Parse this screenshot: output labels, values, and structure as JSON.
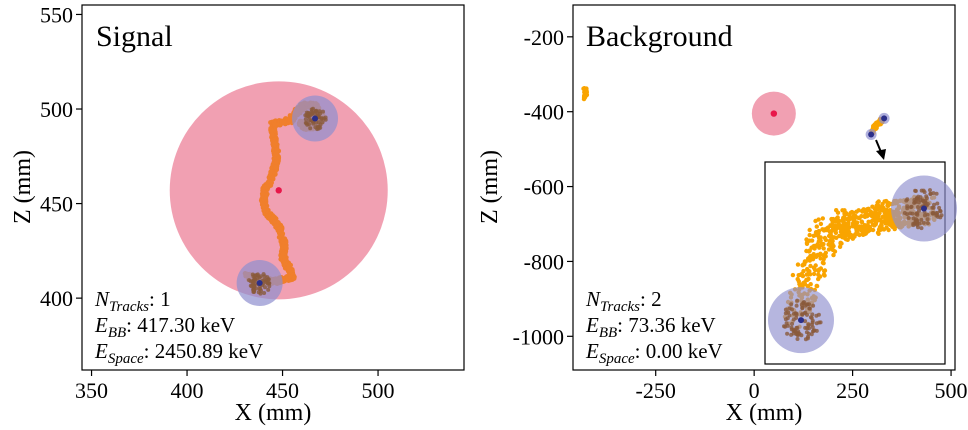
{
  "chart_data": [
    {
      "type": "scatter",
      "title": "Signal",
      "xlabel": "X (mm)",
      "ylabel": "Z (mm)",
      "xlim": [
        345,
        545
      ],
      "ylim": [
        362,
        555
      ],
      "x_ticks": [
        350,
        400,
        450,
        500
      ],
      "y_ticks": [
        400,
        450,
        500,
        550
      ],
      "x_tick_labels": [
        "350",
        "400",
        "450",
        "500"
      ],
      "y_tick_labels": [
        "400",
        "450",
        "500",
        "550"
      ],
      "grid": false,
      "colors": {
        "track": "#f07f2c",
        "sphere": "#ef8fa4",
        "center": "#e8174a",
        "blob": "#8f8fce",
        "blob_center": "#2c2f8a"
      },
      "track_path": [
        [
          431,
          412
        ],
        [
          436,
          410
        ],
        [
          441,
          409
        ],
        [
          447,
          409
        ],
        [
          451,
          410
        ],
        [
          455,
          411
        ],
        [
          454,
          415
        ],
        [
          452,
          418
        ],
        [
          450,
          422
        ],
        [
          451,
          427
        ],
        [
          450,
          432
        ],
        [
          448,
          438
        ],
        [
          445,
          442
        ],
        [
          441,
          446
        ],
        [
          440,
          452
        ],
        [
          441,
          458
        ],
        [
          444,
          463
        ],
        [
          446,
          469
        ],
        [
          447,
          475
        ],
        [
          446,
          482
        ],
        [
          445,
          487
        ],
        [
          445,
          492
        ],
        [
          449,
          493
        ],
        [
          454,
          494
        ],
        [
          457,
          498
        ],
        [
          461,
          502
        ],
        [
          466,
          502
        ],
        [
          470,
          498
        ],
        [
          470,
          493
        ],
        [
          466,
          491
        ],
        [
          462,
          490
        ],
        [
          459,
          494
        ]
      ],
      "large_sphere": {
        "x": 448,
        "y": 457,
        "r": 28
      },
      "blobs": [
        {
          "x": 467,
          "y": 495,
          "r": 6.3
        },
        {
          "x": 438,
          "y": 408,
          "r": 6.3
        }
      ],
      "stats": [
        {
          "symbol": "N",
          "subscript": "Tracks",
          "value": ": 1"
        },
        {
          "symbol": "E",
          "subscript": "BB",
          "value": ":     417.30 keV"
        },
        {
          "symbol": "E",
          "subscript": "Space",
          "value": ":  2450.89 keV"
        }
      ]
    },
    {
      "type": "scatter",
      "title": "Background",
      "xlabel": "X (mm)",
      "ylabel": "Z (mm)",
      "xlim": [
        -460,
        510
      ],
      "ylim": [
        -1090,
        -115
      ],
      "x_ticks": [
        -250,
        0,
        250,
        500
      ],
      "y_ticks": [
        -200,
        -400,
        -600,
        -800,
        -1000
      ],
      "x_tick_labels": [
        "-250",
        "0",
        "250",
        "500"
      ],
      "y_tick_labels": [
        "-200",
        "-400",
        "-600",
        "-800",
        "-1000"
      ],
      "grid": false,
      "colors": {
        "track": "#f9a400",
        "sphere": "#ef8fa4",
        "center": "#e8174a",
        "blob": "#8f8fce",
        "blob_center": "#2c2f8a"
      },
      "stray_track": [
        [
          -430,
          -335
        ],
        [
          -428,
          -350
        ],
        [
          -429,
          -365
        ]
      ],
      "track_path": [
        [
          300,
          -455
        ],
        [
          305,
          -445
        ],
        [
          312,
          -434
        ],
        [
          320,
          -426
        ],
        [
          330,
          -420
        ]
      ],
      "large_sphere": {
        "x": 50,
        "y": -405,
        "r": 55
      },
      "blobs": [
        {
          "x": 330,
          "y": -418,
          "r": 14
        },
        {
          "x": 297,
          "y": -461,
          "r": 14
        }
      ],
      "inset": {
        "track_path": [
          [
            840,
            -330
          ],
          [
            862,
            -270
          ],
          [
            885,
            -230
          ],
          [
            912,
            -220
          ],
          [
            940,
            -218
          ],
          [
            965,
            -210
          ],
          [
            990,
            -208
          ],
          [
            1015,
            -204
          ]
        ],
        "blobs": [
          {
            "x": 1012,
            "y": -203,
            "r": 22
          },
          {
            "x": 848,
            "y": -330,
            "r": 22
          }
        ]
      },
      "stats": [
        {
          "symbol": "N",
          "subscript": "Tracks",
          "value": ": 2"
        },
        {
          "symbol": "E",
          "subscript": "BB",
          "value": ":     73.36 keV"
        },
        {
          "symbol": "E",
          "subscript": "Space",
          "value": ":  0.00 keV"
        }
      ]
    }
  ]
}
